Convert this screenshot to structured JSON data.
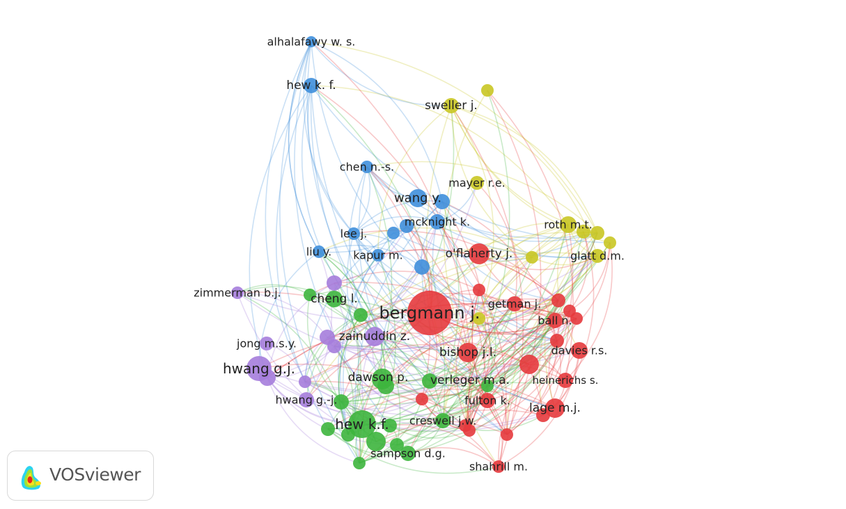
{
  "clusters": {
    "red": "#e63a3d",
    "green": "#3db53d",
    "blue": "#3f8fdb",
    "yellow": "#c9c623",
    "purple": "#a57ddb"
  },
  "nodes": [
    {
      "label": "alhalafawy w. s.",
      "cluster": "blue"
    },
    {
      "label": "hew k. f.",
      "cluster": "blue"
    },
    {
      "label": "sweller j.",
      "cluster": "yellow"
    },
    {
      "label": "chen n.-s.",
      "cluster": "blue"
    },
    {
      "label": "mayer r.e.",
      "cluster": "yellow"
    },
    {
      "label": "wang y.",
      "cluster": "blue"
    },
    {
      "label": "mcknight k.",
      "cluster": "blue"
    },
    {
      "label": "roth m.t.",
      "cluster": "yellow"
    },
    {
      "label": "lee j.",
      "cluster": "blue"
    },
    {
      "label": "liu y.",
      "cluster": "blue"
    },
    {
      "label": "kapur m.",
      "cluster": "blue"
    },
    {
      "label": "o'flaherty j.",
      "cluster": "red"
    },
    {
      "label": "glatt d.m.",
      "cluster": "yellow"
    },
    {
      "label": "zimmerman b.j.",
      "cluster": "purple"
    },
    {
      "label": "getman j.",
      "cluster": "red"
    },
    {
      "label": "cheng l.",
      "cluster": "green"
    },
    {
      "label": "bergmann j.",
      "cluster": "red"
    },
    {
      "label": "ball n.",
      "cluster": "red"
    },
    {
      "label": "zainuddin z.",
      "cluster": "purple"
    },
    {
      "label": "jong m.s.y.",
      "cluster": "purple"
    },
    {
      "label": "bishop j.l.",
      "cluster": "red"
    },
    {
      "label": "davies r.s.",
      "cluster": "red"
    },
    {
      "label": "hwang g.j.",
      "cluster": "purple"
    },
    {
      "label": "dawson p.",
      "cluster": "green"
    },
    {
      "label": "verleger m.a.",
      "cluster": "green"
    },
    {
      "label": "heinerichs s.",
      "cluster": "red"
    },
    {
      "label": "hwang g.-j.",
      "cluster": "purple"
    },
    {
      "label": "fulton k.",
      "cluster": "red"
    },
    {
      "label": "lage m.j.",
      "cluster": "red"
    },
    {
      "label": "hew k.f.",
      "cluster": "green"
    },
    {
      "label": "creswell j.w.",
      "cluster": "green"
    },
    {
      "label": "sampson d.g.",
      "cluster": "green"
    },
    {
      "label": "shahrill m.",
      "cluster": "red"
    }
  ],
  "logo": {
    "text": "VOSviewer"
  }
}
